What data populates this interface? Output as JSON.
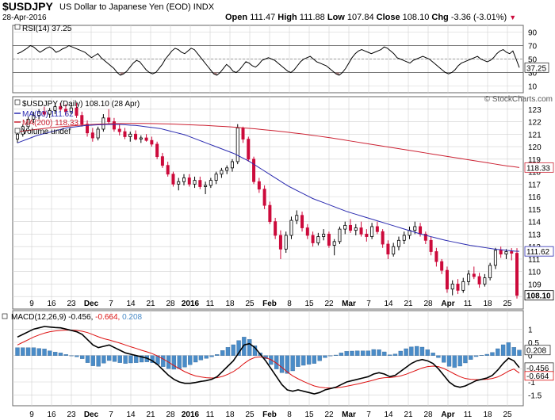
{
  "header": {
    "symbol": "$USDJPY",
    "name": "US Dollar to Japanese Yen (EOD)",
    "exchange": "INDX",
    "date": "28-Apr-2016",
    "open_label": "Open",
    "open": "111.47",
    "high_label": "High",
    "high": "111.88",
    "low_label": "Low",
    "low": "107.84",
    "close_label": "Close",
    "close": "108.10",
    "chg_label": "Chg",
    "chg": "-3.36 (-3.01%)",
    "chg_arrow": "▼",
    "watermark": "© StockCharts.com"
  },
  "colors": {
    "up_candle": "#ffffff",
    "down_candle": "#cc0a3b",
    "ma50": "#2b2bb0",
    "ma200": "#cc2233",
    "macd_line": "#000000",
    "signal_line": "#dd1111",
    "histogram": "#4a8cc8",
    "rsi_line": "#000000",
    "rsi_oversold_fill": "#a07070",
    "grid": "#d0d0d0",
    "label_box": "#ffffff"
  },
  "chart_data": [
    {
      "type": "line",
      "panel": "RSI",
      "legend": "RSI(14) 37.25",
      "ylim": [
        0,
        100
      ],
      "yticks": [
        10,
        30,
        50,
        70,
        90
      ],
      "reference_lines": [
        30,
        50,
        70
      ],
      "last_value": "37.25",
      "values": [
        58,
        60,
        63,
        66,
        70,
        68,
        64,
        60,
        63,
        66,
        68,
        65,
        60,
        62,
        65,
        67,
        70,
        68,
        66,
        64,
        62,
        60,
        56,
        52,
        55,
        58,
        52,
        48,
        44,
        40,
        36,
        30,
        26,
        28,
        32,
        38,
        44,
        48,
        46,
        40,
        34,
        30,
        28,
        30,
        36,
        42,
        50,
        56,
        62,
        66,
        64,
        60,
        58,
        62,
        66,
        64,
        58,
        52,
        46,
        40,
        34,
        28,
        26,
        30,
        36,
        42,
        38,
        32,
        30,
        34,
        40,
        46,
        44,
        40,
        38,
        42,
        48,
        50,
        52,
        50,
        48,
        44,
        40,
        36,
        32,
        30,
        34,
        40,
        46,
        50,
        52,
        54,
        50,
        46,
        44,
        42,
        40,
        36,
        32,
        28,
        26,
        30,
        36,
        44,
        52,
        58,
        62,
        64,
        62,
        60,
        58,
        60,
        62,
        64,
        68,
        66,
        62,
        58,
        52,
        50,
        48,
        46,
        44,
        48,
        50,
        52,
        54,
        52,
        50,
        46,
        42,
        38,
        34,
        30,
        28,
        30,
        34,
        40,
        44,
        46,
        48,
        50,
        52,
        54,
        50,
        48,
        46,
        48,
        52,
        58,
        62,
        64,
        60,
        58,
        62,
        50,
        37.25
      ]
    },
    {
      "type": "candlestick",
      "panel": "price",
      "legend": "$USDJPY (Daily) 108.10 (28 Apr)",
      "ylim": [
        107,
        124
      ],
      "yticks": [
        108,
        109,
        110,
        111,
        112,
        113,
        114,
        115,
        116,
        117,
        118,
        119,
        120,
        121,
        122,
        123
      ],
      "ma50": {
        "name": "MA(50) 111.62",
        "last": "111.62",
        "values": [
          120.3,
          120.45,
          120.6,
          120.75,
          120.9,
          121.0,
          121.1,
          121.2,
          121.3,
          121.4,
          121.5,
          121.55,
          121.6,
          121.65,
          121.7,
          121.72,
          121.74,
          121.76,
          121.77,
          121.78,
          121.78,
          121.77,
          121.75,
          121.72,
          121.7,
          121.65,
          121.6,
          121.55,
          121.5,
          121.45,
          121.35,
          121.25,
          121.15,
          121.05,
          120.95,
          120.8,
          120.65,
          120.5,
          120.35,
          120.2,
          120.05,
          119.9,
          119.75,
          119.6,
          119.45,
          119.25,
          119.05,
          118.85,
          118.6,
          118.35,
          118.1,
          117.85,
          117.6,
          117.35,
          117.1,
          116.85,
          116.65,
          116.45,
          116.25,
          116.05,
          115.85,
          115.7,
          115.55,
          115.4,
          115.25,
          115.1,
          114.95,
          114.8,
          114.68,
          114.56,
          114.44,
          114.32,
          114.2,
          114.08,
          113.96,
          113.84,
          113.72,
          113.6,
          113.48,
          113.36,
          113.24,
          113.12,
          113.0,
          112.9,
          112.8,
          112.7,
          112.6,
          112.5,
          112.42,
          112.34,
          112.26,
          112.18,
          112.1,
          112.04,
          111.98,
          111.92,
          111.86,
          111.8,
          111.76,
          111.72,
          111.68,
          111.64,
          111.62
        ]
      },
      "ma200": {
        "name": "MA(200) 118.33",
        "last": "118.33",
        "values": [
          121.2,
          121.26,
          121.32,
          121.38,
          121.44,
          121.5,
          121.55,
          121.6,
          121.64,
          121.68,
          121.72,
          121.75,
          121.78,
          121.8,
          121.82,
          121.84,
          121.85,
          121.86,
          121.86,
          121.86,
          121.86,
          121.85,
          121.84,
          121.83,
          121.82,
          121.8,
          121.78,
          121.76,
          121.74,
          121.72,
          121.7,
          121.67,
          121.64,
          121.61,
          121.58,
          121.54,
          121.5,
          121.46,
          121.42,
          121.37,
          121.32,
          121.27,
          121.22,
          121.16,
          121.1,
          121.04,
          120.98,
          120.91,
          120.84,
          120.77,
          120.7,
          120.62,
          120.54,
          120.46,
          120.38,
          120.3,
          120.22,
          120.14,
          120.06,
          119.98,
          119.9,
          119.82,
          119.74,
          119.66,
          119.58,
          119.5,
          119.42,
          119.34,
          119.26,
          119.18,
          119.1,
          119.02,
          118.94,
          118.86,
          118.78,
          118.7,
          118.62,
          118.54,
          118.46,
          118.4,
          118.33
        ]
      },
      "ohlc": [
        [
          120.6,
          121.2,
          120.3,
          121.0
        ],
        [
          121.0,
          121.8,
          120.8,
          121.6
        ],
        [
          121.6,
          122.4,
          121.4,
          122.2
        ],
        [
          122.2,
          122.8,
          121.9,
          122.5
        ],
        [
          122.5,
          123.0,
          122.2,
          122.8
        ],
        [
          122.8,
          123.2,
          122.4,
          122.6
        ],
        [
          122.6,
          123.1,
          122.3,
          122.9
        ],
        [
          122.9,
          123.4,
          122.6,
          123.2
        ],
        [
          123.2,
          123.5,
          122.8,
          123.0
        ],
        [
          123.0,
          123.4,
          122.5,
          122.8
        ],
        [
          122.8,
          123.3,
          122.6,
          123.1
        ],
        [
          123.1,
          123.5,
          122.3,
          122.5
        ],
        [
          122.5,
          122.8,
          121.6,
          121.8
        ],
        [
          121.8,
          122.1,
          120.8,
          121.1
        ],
        [
          121.1,
          121.5,
          120.4,
          120.7
        ],
        [
          120.7,
          121.6,
          120.5,
          121.4
        ],
        [
          121.4,
          122.6,
          121.2,
          122.3
        ],
        [
          122.3,
          123.0,
          121.8,
          122.0
        ],
        [
          122.0,
          122.3,
          121.2,
          121.4
        ],
        [
          121.4,
          121.8,
          120.9,
          121.2
        ],
        [
          121.2,
          121.5,
          120.6,
          120.8
        ],
        [
          120.8,
          121.2,
          120.4,
          121.0
        ],
        [
          121.0,
          121.3,
          120.5,
          120.6
        ],
        [
          120.6,
          120.9,
          120.3,
          120.7
        ],
        [
          120.7,
          121.0,
          120.4,
          120.5
        ],
        [
          120.5,
          120.8,
          120.0,
          120.2
        ],
        [
          120.2,
          120.4,
          119.0,
          119.2
        ],
        [
          119.2,
          119.5,
          118.3,
          118.5
        ],
        [
          118.5,
          118.8,
          117.6,
          117.8
        ],
        [
          117.8,
          118.0,
          116.8,
          117.0
        ],
        [
          117.0,
          117.5,
          116.5,
          117.2
        ],
        [
          117.2,
          117.8,
          116.9,
          117.5
        ],
        [
          117.5,
          117.8,
          116.8,
          117.0
        ],
        [
          117.0,
          117.6,
          116.7,
          117.3
        ],
        [
          117.3,
          117.6,
          116.6,
          116.8
        ],
        [
          116.8,
          117.2,
          116.2,
          116.9
        ],
        [
          116.9,
          117.5,
          116.7,
          117.3
        ],
        [
          117.3,
          118.0,
          117.0,
          117.8
        ],
        [
          117.8,
          118.3,
          117.5,
          118.1
        ],
        [
          118.1,
          118.5,
          117.8,
          118.3
        ],
        [
          118.3,
          119.0,
          118.0,
          118.8
        ],
        [
          118.8,
          121.8,
          118.6,
          121.5
        ],
        [
          121.5,
          121.6,
          120.3,
          120.6
        ],
        [
          120.6,
          120.8,
          118.8,
          119.0
        ],
        [
          119.0,
          119.2,
          117.0,
          117.2
        ],
        [
          117.2,
          117.5,
          116.3,
          116.6
        ],
        [
          116.6,
          116.9,
          115.0,
          115.3
        ],
        [
          115.3,
          115.6,
          113.8,
          114.0
        ],
        [
          114.0,
          114.3,
          112.6,
          112.9
        ],
        [
          112.9,
          113.3,
          111.0,
          111.8
        ],
        [
          111.8,
          113.2,
          111.5,
          112.9
        ],
        [
          112.9,
          114.4,
          112.6,
          114.1
        ],
        [
          114.1,
          114.9,
          113.8,
          114.5
        ],
        [
          114.5,
          114.8,
          113.2,
          113.5
        ],
        [
          113.5,
          113.8,
          112.6,
          112.9
        ],
        [
          112.9,
          113.2,
          112.0,
          112.3
        ],
        [
          112.3,
          113.1,
          112.1,
          112.8
        ],
        [
          112.8,
          113.4,
          112.5,
          113.0
        ],
        [
          113.0,
          113.2,
          111.9,
          112.1
        ],
        [
          112.1,
          112.6,
          111.3,
          112.4
        ],
        [
          112.4,
          113.6,
          112.2,
          113.4
        ],
        [
          113.4,
          114.0,
          113.0,
          113.7
        ],
        [
          113.7,
          114.2,
          113.1,
          113.3
        ],
        [
          113.3,
          113.8,
          112.9,
          113.5
        ],
        [
          113.5,
          114.0,
          112.8,
          113.0
        ],
        [
          113.0,
          113.4,
          112.4,
          112.8
        ],
        [
          112.8,
          113.9,
          112.6,
          113.6
        ],
        [
          113.6,
          114.0,
          113.0,
          113.2
        ],
        [
          113.2,
          113.4,
          111.9,
          112.2
        ],
        [
          112.2,
          112.5,
          111.0,
          111.4
        ],
        [
          111.4,
          112.3,
          111.2,
          112.0
        ],
        [
          112.0,
          112.8,
          111.7,
          112.5
        ],
        [
          112.5,
          113.2,
          112.2,
          112.9
        ],
        [
          112.9,
          113.6,
          112.6,
          113.3
        ],
        [
          113.3,
          114.0,
          113.0,
          113.6
        ],
        [
          113.6,
          113.9,
          112.8,
          113.0
        ],
        [
          113.0,
          113.2,
          112.2,
          112.5
        ],
        [
          112.5,
          112.8,
          111.3,
          111.6
        ],
        [
          111.6,
          111.9,
          110.4,
          110.8
        ],
        [
          110.8,
          111.0,
          109.8,
          110.1
        ],
        [
          110.1,
          110.4,
          108.3,
          108.6
        ],
        [
          108.6,
          109.3,
          108.1,
          109.0
        ],
        [
          109.0,
          109.4,
          108.2,
          108.5
        ],
        [
          108.5,
          109.5,
          108.3,
          109.2
        ],
        [
          109.2,
          110.1,
          108.9,
          109.8
        ],
        [
          109.8,
          110.4,
          109.4,
          109.6
        ],
        [
          109.6,
          109.9,
          108.7,
          109.0
        ],
        [
          109.0,
          109.8,
          108.8,
          109.5
        ],
        [
          109.5,
          110.7,
          109.3,
          110.5
        ],
        [
          110.5,
          111.9,
          110.2,
          111.7
        ],
        [
          111.7,
          112.0,
          111.1,
          111.4
        ],
        [
          111.4,
          111.8,
          111.0,
          111.6
        ],
        [
          111.6,
          111.88,
          110.9,
          111.47
        ],
        [
          111.47,
          111.88,
          107.84,
          108.1
        ]
      ]
    },
    {
      "type": "line",
      "panel": "MACD",
      "legend_prefix": "MACD(12,26,9)",
      "legend_macd": "-0.456,",
      "legend_signal": "-0.664,",
      "legend_hist": "0.208",
      "ylim": [
        -1.9,
        1.7
      ],
      "yticks": [
        -1.5,
        -1.0,
        -0.5,
        0.0,
        0.5,
        1.0
      ],
      "labels_right": [
        "0.208",
        "-0.456",
        "-0.664"
      ],
      "macd": [
        0.7,
        0.8,
        0.9,
        1.0,
        1.05,
        1.1,
        1.08,
        1.06,
        1.05,
        1.0,
        0.95,
        0.9,
        0.8,
        0.6,
        0.4,
        0.3,
        0.35,
        0.4,
        0.3,
        0.2,
        0.1,
        0.05,
        0.0,
        -0.05,
        -0.1,
        -0.2,
        -0.35,
        -0.55,
        -0.75,
        -0.9,
        -1.0,
        -1.05,
        -1.05,
        -1.02,
        -0.98,
        -0.95,
        -0.9,
        -0.8,
        -0.6,
        -0.4,
        -0.2,
        0.1,
        0.4,
        0.45,
        0.3,
        0.05,
        -0.2,
        -0.5,
        -0.8,
        -1.1,
        -1.3,
        -1.35,
        -1.3,
        -1.35,
        -1.4,
        -1.45,
        -1.4,
        -1.3,
        -1.25,
        -1.2,
        -1.1,
        -1.0,
        -0.95,
        -0.9,
        -0.85,
        -0.8,
        -0.7,
        -0.65,
        -0.7,
        -0.8,
        -0.75,
        -0.6,
        -0.45,
        -0.3,
        -0.2,
        -0.15,
        -0.2,
        -0.3,
        -0.5,
        -0.75,
        -1.0,
        -1.15,
        -1.2,
        -1.15,
        -1.05,
        -0.95,
        -0.9,
        -0.85,
        -0.75,
        -0.55,
        -0.3,
        -0.1,
        -0.2,
        -0.456
      ],
      "signal": [
        0.4,
        0.5,
        0.6,
        0.7,
        0.78,
        0.85,
        0.9,
        0.93,
        0.95,
        0.96,
        0.96,
        0.95,
        0.92,
        0.87,
        0.79,
        0.71,
        0.64,
        0.59,
        0.53,
        0.47,
        0.4,
        0.33,
        0.27,
        0.2,
        0.14,
        0.07,
        -0.02,
        -0.13,
        -0.25,
        -0.38,
        -0.5,
        -0.61,
        -0.7,
        -0.77,
        -0.81,
        -0.84,
        -0.85,
        -0.84,
        -0.79,
        -0.71,
        -0.61,
        -0.47,
        -0.3,
        -0.16,
        -0.07,
        -0.05,
        -0.08,
        -0.16,
        -0.29,
        -0.45,
        -0.62,
        -0.77,
        -0.88,
        -0.98,
        -1.07,
        -1.15,
        -1.2,
        -1.22,
        -1.23,
        -1.22,
        -1.2,
        -1.16,
        -1.12,
        -1.08,
        -1.03,
        -0.98,
        -0.93,
        -0.87,
        -0.84,
        -0.83,
        -0.81,
        -0.77,
        -0.71,
        -0.63,
        -0.55,
        -0.47,
        -0.42,
        -0.4,
        -0.42,
        -0.49,
        -0.59,
        -0.7,
        -0.8,
        -0.87,
        -0.9,
        -0.91,
        -0.91,
        -0.9,
        -0.87,
        -0.81,
        -0.71,
        -0.59,
        -0.51,
        -0.664
      ]
    }
  ],
  "x_axis": {
    "labels": [
      "9",
      "16",
      "23",
      "Dec",
      "7",
      "14",
      "21",
      "28",
      "2016",
      "11",
      "18",
      "25",
      "Feb",
      "8",
      "15",
      "22",
      "Mar",
      "7",
      "14",
      "21",
      "28",
      "Apr",
      "11",
      "18",
      "25"
    ],
    "bold": [
      "Dec",
      "2016",
      "Feb",
      "Mar",
      "Apr"
    ]
  }
}
